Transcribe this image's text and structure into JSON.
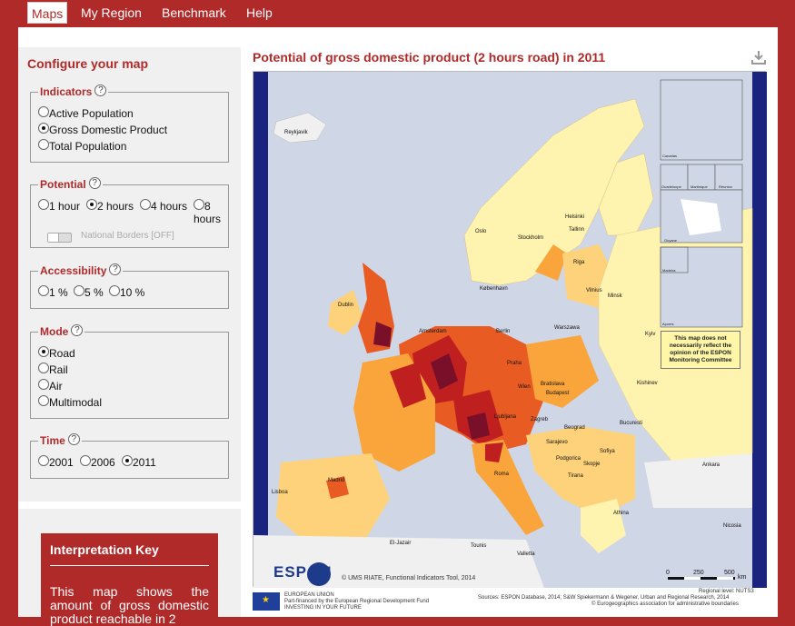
{
  "nav": {
    "tabs": [
      {
        "label": "Maps",
        "active": true
      },
      {
        "label": "My Region",
        "active": false
      },
      {
        "label": "Benchmark",
        "active": false
      },
      {
        "label": "Help",
        "active": false
      }
    ]
  },
  "config": {
    "title": "Configure your map",
    "help_glyph": "?",
    "indicators": {
      "legend": "Indicators",
      "options": [
        "Active Population",
        "Gross Domestic Product",
        "Total Population"
      ],
      "selected": "Gross Domestic Product"
    },
    "potential": {
      "legend": "Potential",
      "options": [
        "1 hour",
        "2 hours",
        "4 hours",
        "8 hours"
      ],
      "selected": "2 hours",
      "toggle_label": "National Borders [OFF]"
    },
    "accessibility": {
      "legend": "Accessibility",
      "options": [
        "1 %",
        "5 %",
        "10 %"
      ],
      "selected": null
    },
    "mode": {
      "legend": "Mode",
      "options": [
        "Road",
        "Rail",
        "Air",
        "Multimodal"
      ],
      "selected": "Road"
    },
    "time": {
      "legend": "Time",
      "options": [
        "2001",
        "2006",
        "2011"
      ],
      "selected": "2011"
    }
  },
  "interpretation": {
    "title": "Interpretation Key",
    "text": "This map shows the amount of gross domestic product reachable in 2"
  },
  "map": {
    "title": "Potential of gross domestic product (2 hours road) in 2011",
    "download_icon": "download-icon",
    "disclaimer": "This map does not necessarily reflect the opinion of the ESPON Monitoring Committee",
    "cities": [
      "Reykjavik",
      "Helsinki",
      "Oslo",
      "Stockholm",
      "Tallinn",
      "Riga",
      "Vilnius",
      "Minsk",
      "København",
      "Dublin",
      "Amsterdam",
      "Berlin",
      "Warszawa",
      "Kyiv",
      "Praha",
      "Wien",
      "Bratislava",
      "Budapest",
      "Kishinev",
      "Ljubljana",
      "Zagreb",
      "Beograd",
      "Bucuresti",
      "Sarajevo",
      "Podgorica",
      "Sofiya",
      "Skopje",
      "Tirana",
      "Ankara",
      "Roma",
      "Madrid",
      "Lisboa",
      "Athina",
      "Nicosia",
      "El-Jazair",
      "Tounis",
      "Valletta"
    ],
    "insets": [
      "Canarias",
      "Guadeloupe",
      "Martinique",
      "Réunion",
      "Guyane",
      "Madeira",
      "Açores"
    ],
    "logo_text": "ESPON",
    "copyright": "© UMS RIATE, Functional Indicators Tool, 2014",
    "scale": [
      "0",
      "250",
      "500",
      "km"
    ],
    "footer": {
      "eu_line1": "EUROPEAN UNION",
      "eu_line2": "Part-financed by the European Regional Development Fund",
      "eu_line3": "INVESTING IN YOUR FUTURE",
      "regional_level": "Regional level:  NUTS3",
      "sources": "Sources: ESPON Database, 2014; S&W Spiekermann & Wegener, Urban and Regional Research, 2014",
      "boundaries": "© Eurogeographics association for administrative boundaries"
    },
    "colors": {
      "sea": "#cfd6e6",
      "land_nodata": "#e8e8e8",
      "low": "#fff3b0",
      "mid_low": "#fdd27a",
      "mid": "#f9a53c",
      "mid_high": "#e85c24",
      "high": "#c01f1f",
      "very_high": "#7a0f2a",
      "frame": "#1a237e"
    }
  }
}
